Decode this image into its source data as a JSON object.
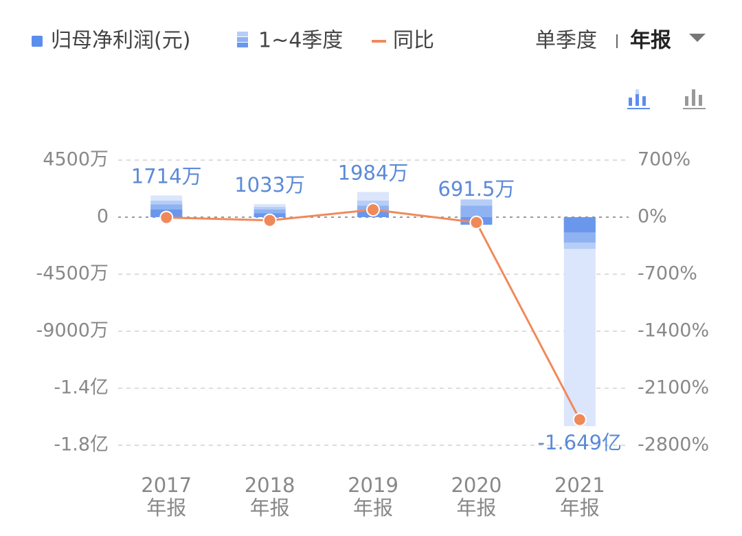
{
  "controls": {
    "options": [
      "单季度",
      "年报"
    ]
  },
  "chart_data": {
    "type": "bar",
    "categories": [
      "2017",
      "2018",
      "2019",
      "2020",
      "2021"
    ],
    "category_suffix": "年报",
    "series": [
      {
        "name": "归母净利润(元)",
        "color": "#dbe5fb",
        "legend_color": "#5b8def",
        "values": [
          17140000,
          10330000,
          19840000,
          6915000,
          -164900000
        ],
        "value_labels": [
          "1714万",
          "1033万",
          "1984万",
          "691.5万",
          "-1.649亿"
        ],
        "label_color": "#5b8ad8"
      },
      {
        "name": "1~4季度",
        "colors": [
          "#b6cdf7",
          "#8fb2f2",
          "#6a97ec"
        ],
        "quarters": [
          [
            6000000,
            10000000,
            13000000
          ],
          [
            3000000,
            6000000,
            8000000
          ],
          [
            5000000,
            9000000,
            13000000
          ],
          [
            -6000000,
            9000000,
            14000000
          ],
          [
            -12000000,
            -20000000,
            -25000000
          ]
        ]
      },
      {
        "name": "同比",
        "type": "line",
        "axis": "y2",
        "color": "#f0895a",
        "values": [
          -5,
          -39.7,
          92.1,
          -65.1,
          -2484.7
        ]
      }
    ],
    "ylim": [
      -180000000,
      45000000
    ],
    "yticks": [
      {
        "value": 45000000,
        "label": "4500万"
      },
      0,
      {
        "value": -45000000,
        "label": "-4500万"
      },
      {
        "value": -90000000,
        "label": "-9000万"
      },
      {
        "value": -135000000,
        "label": "-1.4亿"
      },
      {
        "value": -180000000,
        "label": "-1.8亿"
      }
    ],
    "y2lim": [
      -2800,
      700
    ],
    "y2ticks": [
      {
        "value": 700,
        "label": "700%"
      },
      {
        "value": 0,
        "label": "0%"
      },
      {
        "value": -700,
        "label": "-700%"
      },
      {
        "value": -1400,
        "label": "-1400%"
      },
      {
        "value": -2100,
        "label": "-2100%"
      },
      {
        "value": -2800,
        "label": "-2800%"
      }
    ],
    "grid": true
  }
}
